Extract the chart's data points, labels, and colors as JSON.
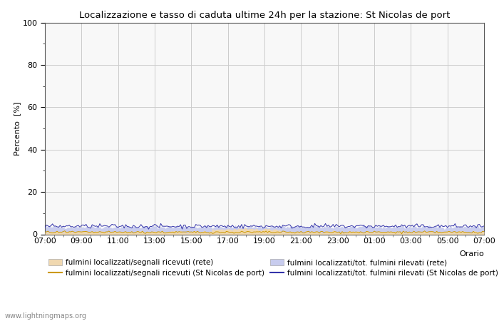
{
  "title": "Localizzazione e tasso di caduta ultime 24h per la stazione: St Nicolas de port",
  "ylabel": "Percento  [%]",
  "xlabel_right": "Orario",
  "watermark": "www.lightningmaps.org",
  "x_ticks": [
    "07:00",
    "09:00",
    "11:00",
    "13:00",
    "15:00",
    "17:00",
    "19:00",
    "21:00",
    "23:00",
    "01:00",
    "03:00",
    "05:00",
    "07:00"
  ],
  "ylim": [
    0,
    100
  ],
  "yticks": [
    0,
    20,
    40,
    60,
    80,
    100
  ],
  "yticks_minor": [
    10,
    30,
    50,
    70,
    90
  ],
  "fill_rete_segnali_color": "#f0d8b0",
  "fill_rete_tot_color": "#c8ccee",
  "line_station_segnali_color": "#cc9900",
  "line_station_tot_color": "#3333aa",
  "background_color": "#ffffff",
  "plot_bg_color": "#f8f8f8",
  "grid_color": "#cccccc",
  "legend_labels": [
    "fulmini localizzati/segnali ricevuti (rete)",
    "fulmini localizzati/segnali ricevuti (St Nicolas de port)",
    "fulmini localizzati/tot. fulmini rilevati (rete)",
    "fulmini localizzati/tot. fulmini rilevati (St Nicolas de port)"
  ]
}
